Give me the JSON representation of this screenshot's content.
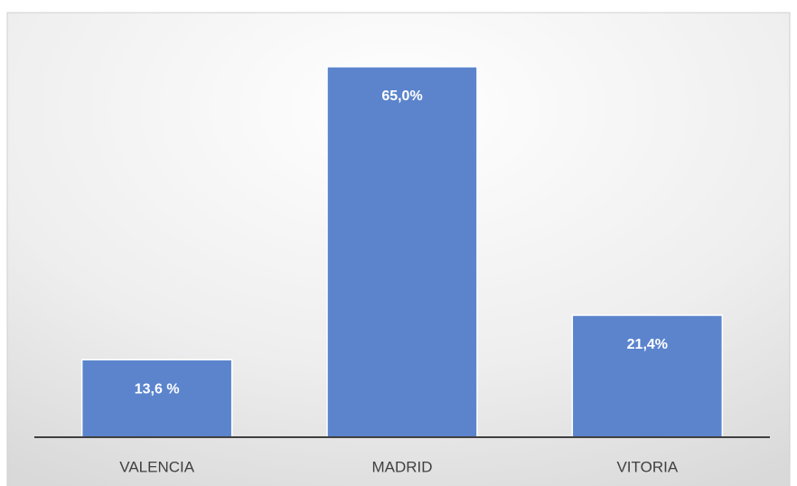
{
  "chart_data": {
    "type": "bar",
    "categories": [
      "VALENCIA",
      "MADRID",
      "VITORIA"
    ],
    "values": [
      13.6,
      65.0,
      21.4
    ],
    "value_labels": [
      "13,6 %",
      "65,0%",
      "21,4%"
    ],
    "color": "#5b84cd"
  }
}
